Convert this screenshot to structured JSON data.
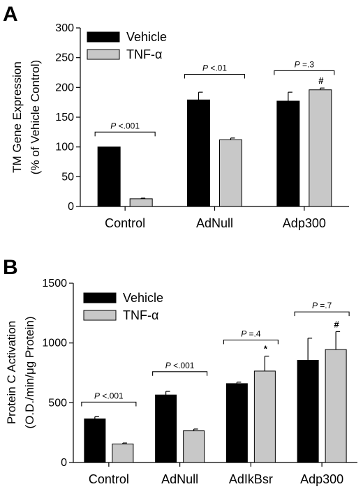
{
  "colors": {
    "vehicle": "#000000",
    "tnf": "#c8c8c8",
    "axis": "#000000"
  },
  "chart_data": [
    {
      "panel": "A",
      "type": "bar",
      "ylabel_line1": "TM Gene Expression",
      "ylabel_line2": "(% of Vehicle Control)",
      "ylim": [
        0,
        300
      ],
      "yticks": [
        "0",
        "50",
        "100",
        "150",
        "200",
        "250",
        "300"
      ],
      "ytick_values": [
        0,
        50,
        100,
        150,
        200,
        250,
        300
      ],
      "categories": [
        "Control",
        "AdNull",
        "Adp300"
      ],
      "legend_position": "top-left",
      "series": [
        {
          "name": "Vehicle",
          "color": "#000000",
          "values": [
            100,
            179,
            177
          ],
          "errors": [
            0,
            13,
            15
          ]
        },
        {
          "name": "TNF-α",
          "color": "#c8c8c8",
          "values": [
            13,
            112,
            196
          ],
          "errors": [
            1,
            3,
            3
          ]
        }
      ],
      "comparisons": [
        {
          "category": 0,
          "p_letter": "P",
          "p_rest": " <.001",
          "bracket_y": 125
        },
        {
          "category": 1,
          "p_letter": "P",
          "p_rest": " <.01",
          "bracket_y": 222
        },
        {
          "category": 2,
          "p_letter": "P",
          "p_rest": " =.3",
          "bracket_y": 228
        }
      ],
      "markers": [
        {
          "category": 2,
          "series": 1,
          "symbol": "#"
        }
      ]
    },
    {
      "panel": "B",
      "type": "bar",
      "ylabel_line1": "Protein C Activation",
      "ylabel_line2": "(O.D./min/μg Protein)",
      "ylim": [
        0,
        1500
      ],
      "yticks": [
        "0",
        "500",
        "1000",
        "1500"
      ],
      "ytick_values": [
        0,
        500,
        1000,
        1500
      ],
      "categories": [
        "Control",
        "AdNull",
        "AdIkBsr",
        "Adp300"
      ],
      "legend_position": "top-left",
      "series": [
        {
          "name": "Vehicle",
          "color": "#000000",
          "values": [
            365,
            565,
            660,
            855
          ],
          "errors": [
            18,
            30,
            12,
            185
          ]
        },
        {
          "name": "TNF-α",
          "color": "#c8c8c8",
          "values": [
            155,
            265,
            765,
            945
          ],
          "errors": [
            8,
            15,
            125,
            150
          ]
        }
      ],
      "comparisons": [
        {
          "category": 0,
          "p_letter": "P",
          "p_rest": " <.001",
          "bracket_y": 505
        },
        {
          "category": 1,
          "p_letter": "P",
          "p_rest": " <.001",
          "bracket_y": 760
        },
        {
          "category": 2,
          "p_letter": "P",
          "p_rest": " =.4",
          "bracket_y": 1025
        },
        {
          "category": 3,
          "p_letter": "P",
          "p_rest": " =.7",
          "bracket_y": 1260
        }
      ],
      "markers": [
        {
          "category": 2,
          "series": 1,
          "symbol": "*"
        },
        {
          "category": 3,
          "series": 1,
          "symbol": "#"
        }
      ]
    }
  ]
}
